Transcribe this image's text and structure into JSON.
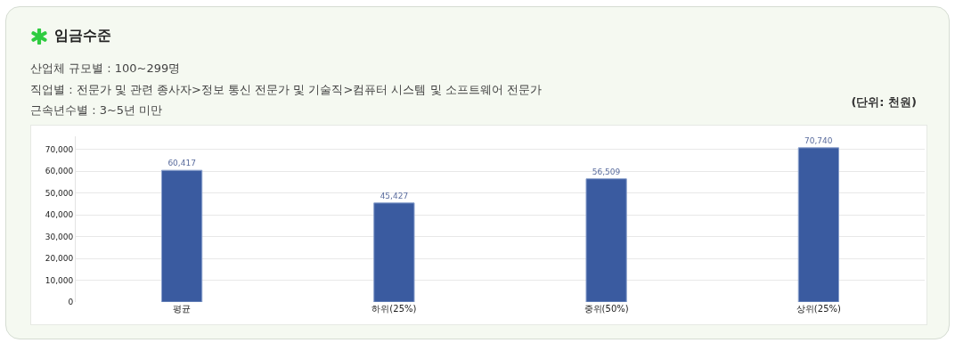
{
  "chart_data": {
    "type": "bar",
    "title": "임금수준",
    "subtitle": "산업체 규모별 : 100~299명\n직업별 : 전문가 및 관련 종사자>정보 통신 전문가 및 기술직>컴퓨터 시스템 및 소프트웨어 전문가\n근속년수별 : 3~5년 미만",
    "annotations": [
      "(단위: 천원)"
    ],
    "categories": [
      "평균",
      "하위(25%)",
      "중위(50%)",
      "상위(25%)"
    ],
    "values": [
      60417,
      45427,
      56509,
      70740
    ],
    "color": "#3a5ba0",
    "ylim": [
      0,
      76000
    ],
    "yticks": [
      0,
      {
        "value": 10000,
        "label": "10,000"
      },
      {
        "value": 20000,
        "label": "20,000"
      },
      {
        "value": 30000,
        "label": "30,000"
      },
      {
        "value": 40000,
        "label": "40,000"
      },
      {
        "value": 50000,
        "label": "50,000"
      },
      {
        "value": 60000,
        "label": "60,000"
      },
      {
        "value": 70000,
        "label": "70,000"
      }
    ],
    "grid": "y",
    "value_labels": [
      "60,417",
      "45,427",
      "56,509",
      "70,740"
    ]
  }
}
